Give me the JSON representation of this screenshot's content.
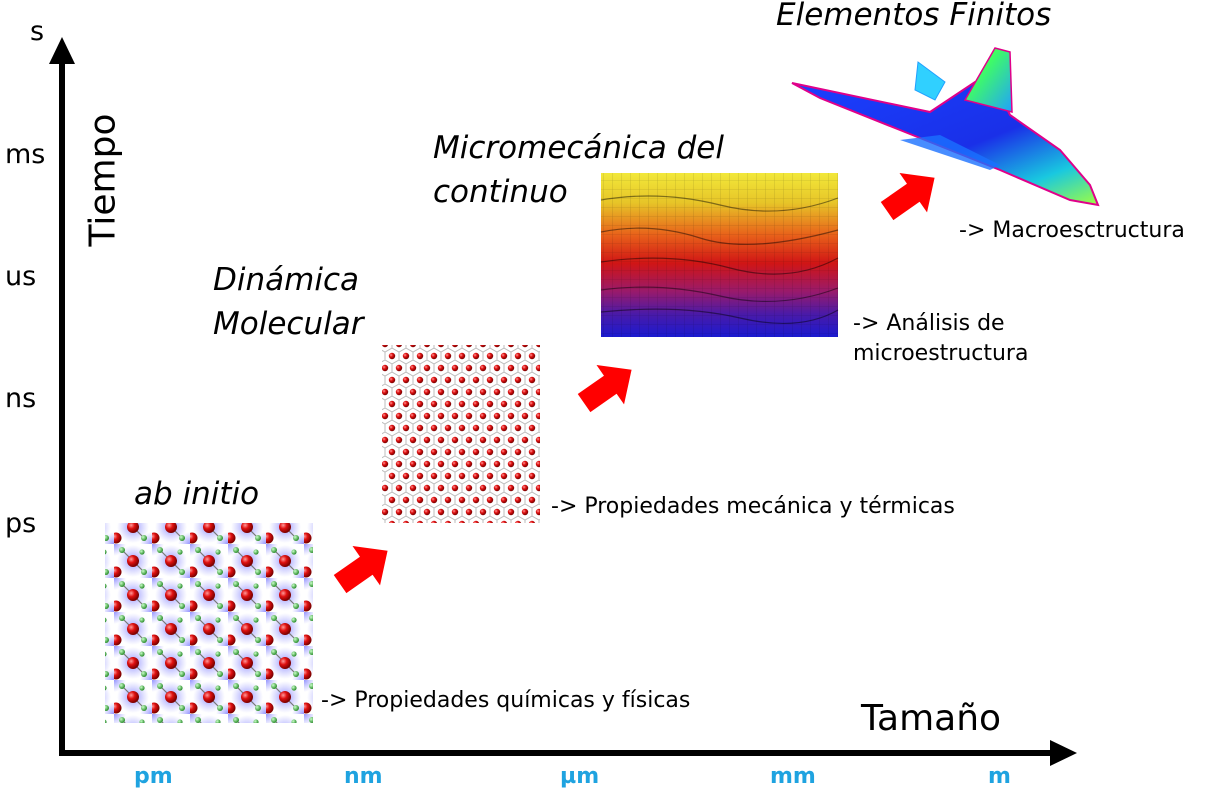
{
  "axes": {
    "y_title": "Tiempo",
    "x_title": "Tamaño",
    "y_ticks": [
      "s",
      "ms",
      "us",
      "ns",
      "ps"
    ],
    "x_ticks": [
      "pm",
      "nm",
      "µm",
      "mm",
      "m"
    ]
  },
  "stages": [
    {
      "method": "ab initio",
      "description": "-> Propiedades químicas y físicas"
    },
    {
      "method_line1": "Dinámica",
      "method_line2": "Molecular",
      "description": "-> Propiedades mecánica y térmicas"
    },
    {
      "method_line1": "Micromecánica del",
      "method_line2": "continuo",
      "description_line1": "-> Análisis de",
      "description_line2": "microestructura"
    },
    {
      "method": "Elementos Finitos",
      "description": "-> Macroesctructura"
    }
  ],
  "colors": {
    "arrow": "#ff0000",
    "tick_accent": "#1fa3e0"
  }
}
